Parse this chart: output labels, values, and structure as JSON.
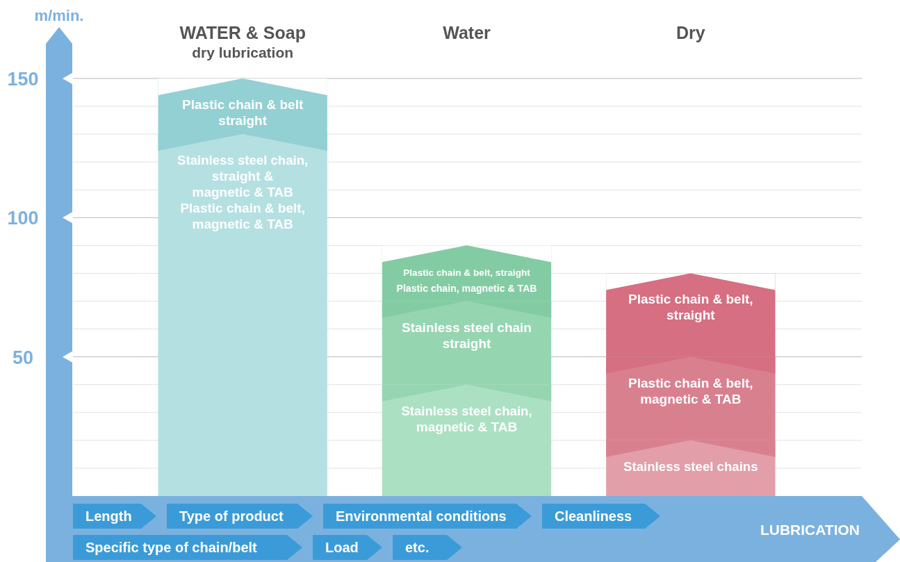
{
  "chart_data": {
    "type": "bar",
    "stacked": true,
    "ylabel": "m/min.",
    "xlabel": "LUBRICATION",
    "categories": [
      "WATER & Soap\ndry lubrication",
      "Water",
      "Dry"
    ],
    "series": [
      {
        "colors": [
          "#b5e0e2",
          "#ace0c3",
          "#e29ea9"
        ],
        "values": [
          130,
          40,
          20
        ],
        "value_labels": [
          "Stainless steel chain,\nstraight &\nmagnetic & TAB\n\nPlastic chain & belt,\nmagnetic & TAB",
          "Stainless steel chain,\nmagnetic & TAB",
          "Stainless steel chains"
        ]
      },
      {
        "colors": [
          "#93d0d3",
          "#95d6b0",
          "#d9808f"
        ],
        "values": [
          20,
          30,
          30
        ],
        "value_labels": [
          "Plastic chain & belt\nstraight",
          "Stainless steel chain\nstraight",
          "Plastic chain & belt,\nmagnetic & TAB"
        ]
      },
      {
        "colors": [
          null,
          "#83cca3",
          "#d56f81"
        ],
        "values": [
          null,
          20,
          30
        ],
        "value_labels": [
          null,
          "Plastic chain & belt, straight\nPlastic chain, magnetic & TAB",
          "Plastic chain & belt,\nstraight"
        ]
      }
    ],
    "ylim": [
      0,
      150
    ],
    "yticks": [
      {
        "value": 10,
        "label": null
      },
      {
        "value": 20,
        "label": null
      },
      {
        "value": 30,
        "label": null
      },
      {
        "value": 40,
        "label": null
      },
      50,
      {
        "value": 60,
        "label": null
      },
      {
        "value": 70,
        "label": null
      },
      {
        "value": 80,
        "label": null
      },
      {
        "value": 90,
        "label": null
      },
      100,
      {
        "value": 110,
        "label": null
      },
      {
        "value": 120,
        "label": null
      },
      {
        "value": 130,
        "label": null
      },
      {
        "value": 140,
        "label": null
      },
      150
    ],
    "grid": "y",
    "annotations": [
      "Length",
      "Type of product",
      "Environmental conditions",
      "Cleanliness",
      "Specific type of chain/belt",
      "Load",
      "etc."
    ]
  }
}
